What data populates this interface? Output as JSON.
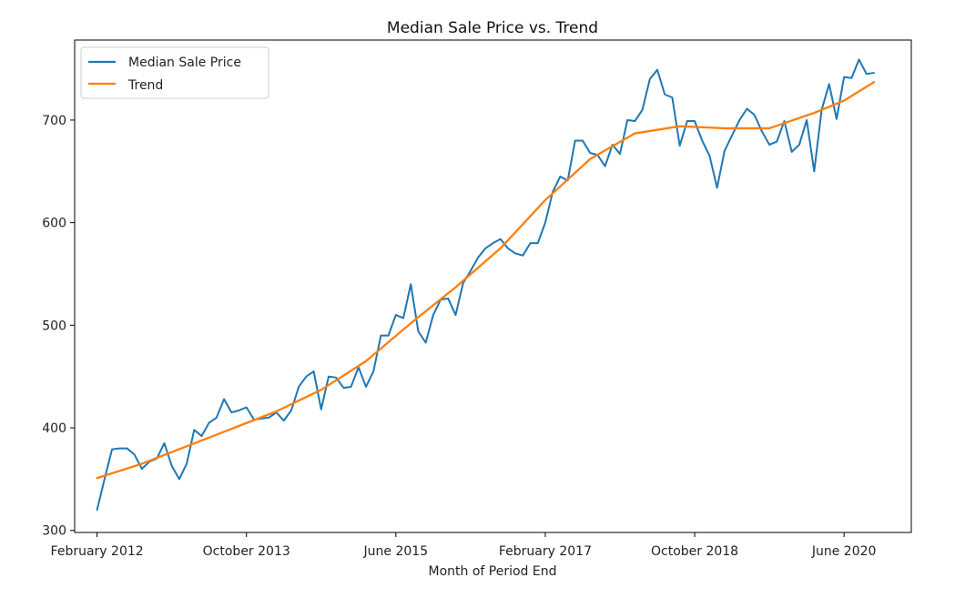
{
  "chart_data": {
    "type": "line",
    "title": "Median Sale Price vs. Trend",
    "xlabel": "Month of Period End",
    "ylabel": "",
    "ylim": [
      298,
      778
    ],
    "xlim": [
      "2011-11",
      "2021-03"
    ],
    "grid": false,
    "legend_position": "top-left",
    "x_ticks": [
      {
        "date": "2012-02",
        "label": "February 2012"
      },
      {
        "date": "2013-10",
        "label": "October 2013"
      },
      {
        "date": "2015-06",
        "label": "June 2015"
      },
      {
        "date": "2017-02",
        "label": "February 2017"
      },
      {
        "date": "2018-10",
        "label": "October 2018"
      },
      {
        "date": "2020-06",
        "label": "June 2020"
      }
    ],
    "y_ticks": [
      300,
      400,
      500,
      600,
      700
    ],
    "series": [
      {
        "name": "Median Sale Price",
        "color": "#1f77b4",
        "points": [
          [
            "2012-02",
            320
          ],
          [
            "2012-03",
            350
          ],
          [
            "2012-04",
            379
          ],
          [
            "2012-05",
            380
          ],
          [
            "2012-06",
            380
          ],
          [
            "2012-07",
            374
          ],
          [
            "2012-08",
            360
          ],
          [
            "2012-09",
            367
          ],
          [
            "2012-10",
            370
          ],
          [
            "2012-11",
            385
          ],
          [
            "2012-12",
            363
          ],
          [
            "2013-01",
            350
          ],
          [
            "2013-02",
            365
          ],
          [
            "2013-03",
            398
          ],
          [
            "2013-04",
            392
          ],
          [
            "2013-05",
            405
          ],
          [
            "2013-06",
            410
          ],
          [
            "2013-07",
            428
          ],
          [
            "2013-08",
            415
          ],
          [
            "2013-09",
            417
          ],
          [
            "2013-10",
            420
          ],
          [
            "2013-11",
            408
          ],
          [
            "2013-12",
            409
          ],
          [
            "2014-01",
            410
          ],
          [
            "2014-02",
            415
          ],
          [
            "2014-03",
            407
          ],
          [
            "2014-04",
            417
          ],
          [
            "2014-05",
            440
          ],
          [
            "2014-06",
            450
          ],
          [
            "2014-07",
            455
          ],
          [
            "2014-08",
            418
          ],
          [
            "2014-09",
            450
          ],
          [
            "2014-10",
            449
          ],
          [
            "2014-11",
            439
          ],
          [
            "2014-12",
            440
          ],
          [
            "2015-01",
            459
          ],
          [
            "2015-02",
            440
          ],
          [
            "2015-03",
            455
          ],
          [
            "2015-04",
            490
          ],
          [
            "2015-05",
            490
          ],
          [
            "2015-06",
            510
          ],
          [
            "2015-07",
            507
          ],
          [
            "2015-08",
            540
          ],
          [
            "2015-09",
            494
          ],
          [
            "2015-10",
            483
          ],
          [
            "2015-11",
            510
          ],
          [
            "2015-12",
            525
          ],
          [
            "2016-01",
            526
          ],
          [
            "2016-02",
            510
          ],
          [
            "2016-03",
            541
          ],
          [
            "2016-04",
            553
          ],
          [
            "2016-05",
            566
          ],
          [
            "2016-06",
            575
          ],
          [
            "2016-07",
            580
          ],
          [
            "2016-08",
            584
          ],
          [
            "2016-09",
            575
          ],
          [
            "2016-10",
            570
          ],
          [
            "2016-11",
            568
          ],
          [
            "2016-12",
            580
          ],
          [
            "2017-01",
            580
          ],
          [
            "2017-02",
            600
          ],
          [
            "2017-03",
            630
          ],
          [
            "2017-04",
            645
          ],
          [
            "2017-05",
            641
          ],
          [
            "2017-06",
            680
          ],
          [
            "2017-07",
            680
          ],
          [
            "2017-08",
            668
          ],
          [
            "2017-09",
            666
          ],
          [
            "2017-10",
            655
          ],
          [
            "2017-11",
            676
          ],
          [
            "2017-12",
            667
          ],
          [
            "2018-01",
            700
          ],
          [
            "2018-02",
            699
          ],
          [
            "2018-03",
            710
          ],
          [
            "2018-04",
            740
          ],
          [
            "2018-05",
            749
          ],
          [
            "2018-06",
            725
          ],
          [
            "2018-07",
            722
          ],
          [
            "2018-08",
            675
          ],
          [
            "2018-09",
            699
          ],
          [
            "2018-10",
            699
          ],
          [
            "2018-11",
            680
          ],
          [
            "2018-12",
            665
          ],
          [
            "2019-01",
            634
          ],
          [
            "2019-02",
            670
          ],
          [
            "2019-03",
            685
          ],
          [
            "2019-04",
            700
          ],
          [
            "2019-05",
            711
          ],
          [
            "2019-06",
            705
          ],
          [
            "2019-07",
            689
          ],
          [
            "2019-08",
            676
          ],
          [
            "2019-09",
            679
          ],
          [
            "2019-10",
            699
          ],
          [
            "2019-11",
            669
          ],
          [
            "2019-12",
            676
          ],
          [
            "2020-01",
            700
          ],
          [
            "2020-02",
            650
          ],
          [
            "2020-03",
            710
          ],
          [
            "2020-04",
            735
          ],
          [
            "2020-05",
            701
          ],
          [
            "2020-06",
            742
          ],
          [
            "2020-07",
            741
          ],
          [
            "2020-08",
            759
          ],
          [
            "2020-09",
            745
          ],
          [
            "2020-10",
            746
          ]
        ]
      },
      {
        "name": "Trend",
        "color": "#ff7f0e",
        "points": [
          [
            "2012-02",
            351
          ],
          [
            "2012-08",
            365
          ],
          [
            "2013-02",
            382
          ],
          [
            "2013-08",
            399
          ],
          [
            "2014-02",
            416
          ],
          [
            "2014-08",
            437
          ],
          [
            "2015-02",
            465
          ],
          [
            "2015-08",
            502
          ],
          [
            "2016-02",
            537
          ],
          [
            "2016-08",
            575
          ],
          [
            "2017-02",
            622
          ],
          [
            "2017-08",
            662
          ],
          [
            "2018-02",
            687
          ],
          [
            "2018-08",
            694
          ],
          [
            "2019-02",
            692
          ],
          [
            "2019-08",
            692
          ],
          [
            "2020-02",
            707
          ],
          [
            "2020-06",
            719
          ],
          [
            "2020-10",
            737
          ]
        ]
      }
    ]
  }
}
